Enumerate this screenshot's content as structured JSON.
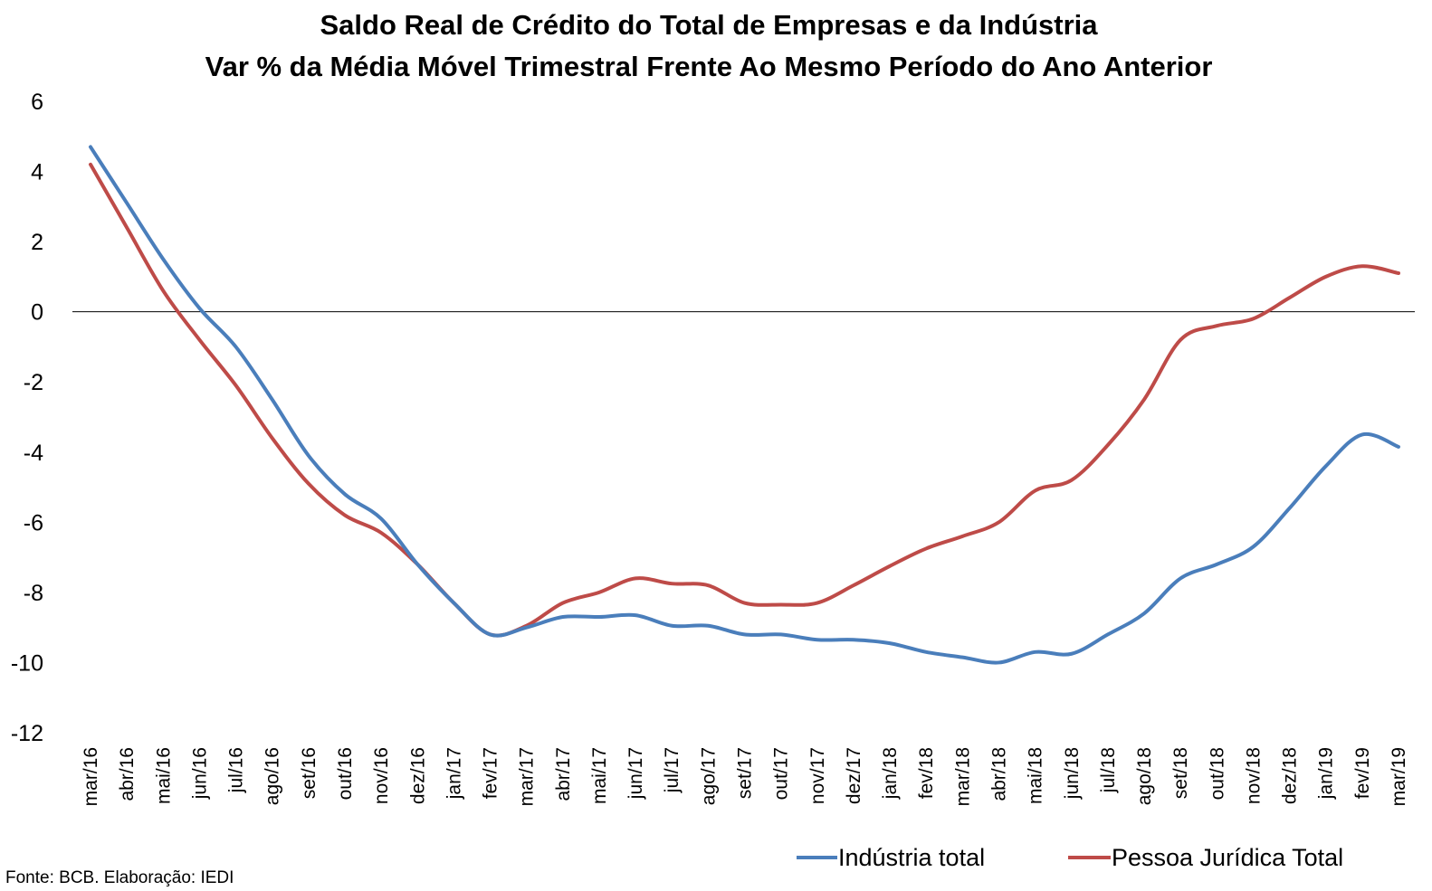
{
  "chart_data": {
    "type": "line",
    "title": "Saldo Real de Crédito do Total de Empresas e da Indústria",
    "subtitle": "Var % da Média Móvel Trimestral Frente Ao Mesmo Período do Ano Anterior",
    "xlabel": "",
    "ylabel": "",
    "ylim": [
      -12,
      6
    ],
    "yticks": [
      6,
      4,
      2,
      0,
      -2,
      -4,
      -6,
      -8,
      -10,
      -12
    ],
    "grid": false,
    "legend_position": "bottom-right",
    "categories": [
      "mar/16",
      "abr/16",
      "mai/16",
      "jun/16",
      "jul/16",
      "ago/16",
      "set/16",
      "out/16",
      "nov/16",
      "dez/16",
      "jan/17",
      "fev/17",
      "mar/17",
      "abr/17",
      "mai/17",
      "jun/17",
      "jul/17",
      "ago/17",
      "set/17",
      "out/17",
      "nov/17",
      "dez/17",
      "jan/18",
      "fev/18",
      "mar/18",
      "abr/18",
      "mai/18",
      "jun/18",
      "jul/18",
      "ago/18",
      "set/18",
      "out/18",
      "nov/18",
      "dez/18",
      "jan/19",
      "fev/19",
      "mar/19"
    ],
    "series": [
      {
        "name": "Indústria total",
        "color": "#4a7ebb",
        "values": [
          4.7,
          3.1,
          1.5,
          0.1,
          -1.0,
          -2.5,
          -4.1,
          -5.2,
          -5.9,
          -7.2,
          -8.3,
          -9.2,
          -9.0,
          -8.7,
          -8.7,
          -8.65,
          -8.95,
          -8.95,
          -9.2,
          -9.2,
          -9.35,
          -9.35,
          -9.45,
          -9.7,
          -9.85,
          -10.0,
          -9.7,
          -9.75,
          -9.2,
          -8.6,
          -7.6,
          -7.2,
          -6.7,
          -5.6,
          -4.4,
          -3.5,
          -3.85
        ]
      },
      {
        "name": "Pessoa Jurídica Total",
        "color": "#be4b48",
        "values": [
          4.2,
          2.4,
          0.6,
          -0.8,
          -2.1,
          -3.6,
          -4.9,
          -5.8,
          -6.3,
          -7.2,
          -8.3,
          -9.2,
          -8.95,
          -8.3,
          -8.0,
          -7.6,
          -7.75,
          -7.8,
          -8.3,
          -8.35,
          -8.3,
          -7.8,
          -7.25,
          -6.75,
          -6.4,
          -6.0,
          -5.1,
          -4.8,
          -3.8,
          -2.5,
          -0.8,
          -0.4,
          -0.2,
          0.4,
          1.0,
          1.3,
          1.1
        ]
      }
    ],
    "source_note": "Fonte: BCB. Elaboração: IEDI"
  }
}
